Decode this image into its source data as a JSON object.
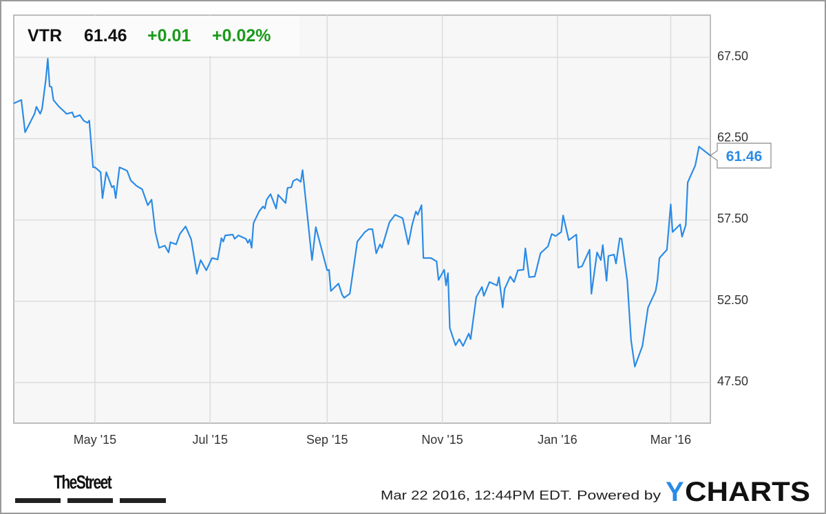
{
  "header": {
    "ticker": "VTR",
    "price": "61.46",
    "change": "+0.01",
    "change_pct": "+0.02%"
  },
  "colors": {
    "line": "#2a8be6",
    "positive": "#1a9a1a",
    "plot_bg": "#f7f7f7",
    "grid": "#dcdcdc",
    "ycharts_y": "#2a8be6"
  },
  "footer": {
    "timestamp": "Mar 22 2016, 12:44PM EDT.",
    "powered_by": "Powered by",
    "brand_y": "Y",
    "brand_rest": "CHARTS",
    "logo_left": "TheStreet"
  },
  "chart_data": {
    "type": "line",
    "title": "",
    "xlabel": "",
    "ylabel": "",
    "y_axis_side": "right",
    "ylim": [
      45.0,
      70.1
    ],
    "xlim": [
      "2015-03-19",
      "2016-03-22"
    ],
    "grid": true,
    "yticks": [
      47.5,
      52.5,
      57.5,
      62.5,
      67.5
    ],
    "ytick_labels": [
      "47.50",
      "52.50",
      "57.50",
      "62.50",
      "67.50"
    ],
    "xticks": [
      "2015-05-01",
      "2015-07-01",
      "2015-09-01",
      "2015-11-01",
      "2016-01-01",
      "2016-03-01"
    ],
    "xtick_labels": [
      "May '15",
      "Jul '15",
      "Sep '15",
      "Nov '15",
      "Jan '16",
      "Mar '16"
    ],
    "last_value_label": "61.46",
    "series": [
      {
        "x": [
          "2015-03-19",
          "2015-03-23",
          "2015-03-25",
          "2015-03-30",
          "2015-03-31",
          "2015-04-02",
          "2015-04-03",
          "2015-04-05",
          "2015-04-06",
          "2015-04-07",
          "2015-04-08",
          "2015-04-09",
          "2015-04-12",
          "2015-04-14",
          "2015-04-16",
          "2015-04-19",
          "2015-04-20",
          "2015-04-23",
          "2015-04-25",
          "2015-04-27",
          "2015-04-28",
          "2015-04-30",
          "2015-05-01",
          "2015-05-04",
          "2015-05-05",
          "2015-05-07",
          "2015-05-10",
          "2015-05-11",
          "2015-05-12",
          "2015-05-14",
          "2015-05-18",
          "2015-05-20",
          "2015-05-23",
          "2015-05-26",
          "2015-05-29",
          "2015-05-31",
          "2015-06-02",
          "2015-06-04",
          "2015-06-07",
          "2015-06-09",
          "2015-06-10",
          "2015-06-13",
          "2015-06-15",
          "2015-06-18",
          "2015-06-21",
          "2015-06-24",
          "2015-06-26",
          "2015-06-29",
          "2015-07-02",
          "2015-07-05",
          "2015-07-07",
          "2015-07-08",
          "2015-07-09",
          "2015-07-13",
          "2015-07-14",
          "2015-07-16",
          "2015-07-20",
          "2015-07-21",
          "2015-07-22",
          "2015-07-23",
          "2015-07-24",
          "2015-07-27",
          "2015-07-29",
          "2015-07-30",
          "2015-07-31",
          "2015-08-02",
          "2015-08-05",
          "2015-08-06",
          "2015-08-10",
          "2015-08-11",
          "2015-08-13",
          "2015-08-14",
          "2015-08-16",
          "2015-08-18",
          "2015-08-19",
          "2015-08-24",
          "2015-08-26",
          "2015-09-01",
          "2015-09-02",
          "2015-09-03",
          "2015-09-07",
          "2015-09-09",
          "2015-09-10",
          "2015-09-13",
          "2015-09-17",
          "2015-09-21",
          "2015-09-23",
          "2015-09-25",
          "2015-09-27",
          "2015-09-29",
          "2015-09-30",
          "2015-10-04",
          "2015-10-07",
          "2015-10-11",
          "2015-10-14",
          "2015-10-16",
          "2015-10-18",
          "2015-10-19",
          "2015-10-21",
          "2015-10-22",
          "2015-10-26",
          "2015-10-29",
          "2015-10-30",
          "2015-11-02",
          "2015-11-03",
          "2015-11-04",
          "2015-11-05",
          "2015-11-08",
          "2015-11-10",
          "2015-11-12",
          "2015-11-15",
          "2015-11-16",
          "2015-11-19",
          "2015-11-22",
          "2015-11-23",
          "2015-11-26",
          "2015-11-30",
          "2015-12-01",
          "2015-12-03",
          "2015-12-04",
          "2015-12-07",
          "2015-12-09",
          "2015-12-11",
          "2015-12-14",
          "2015-12-15",
          "2015-12-17",
          "2015-12-20",
          "2015-12-23",
          "2015-12-27",
          "2015-12-29",
          "2015-12-31",
          "2016-01-03",
          "2016-01-04",
          "2016-01-07",
          "2016-01-11",
          "2016-01-12",
          "2016-01-14",
          "2016-01-18",
          "2016-01-19",
          "2016-01-22",
          "2016-01-24",
          "2016-01-25",
          "2016-01-27",
          "2016-01-28",
          "2016-01-31",
          "2016-02-01",
          "2016-02-03",
          "2016-02-04",
          "2016-02-07",
          "2016-02-09",
          "2016-02-11",
          "2016-02-15",
          "2016-02-18",
          "2016-02-22",
          "2016-02-23",
          "2016-02-24",
          "2016-02-28",
          "2016-03-01",
          "2016-03-02",
          "2016-03-06",
          "2016-03-07",
          "2016-03-09",
          "2016-03-10",
          "2016-03-14",
          "2016-03-16",
          "2016-03-22"
        ],
        "y": [
          64.67,
          64.88,
          62.89,
          64.03,
          64.46,
          64.03,
          64.33,
          66.15,
          67.42,
          65.72,
          65.68,
          64.88,
          64.46,
          64.25,
          64.03,
          64.12,
          63.82,
          63.95,
          63.61,
          63.48,
          63.61,
          60.74,
          60.74,
          60.44,
          58.84,
          60.44,
          59.51,
          59.6,
          58.84,
          60.74,
          60.53,
          59.93,
          59.6,
          59.39,
          58.41,
          58.75,
          56.76,
          55.79,
          55.92,
          55.5,
          56.13,
          56.0,
          56.64,
          57.1,
          56.3,
          54.19,
          55.03,
          54.4,
          55.16,
          55.07,
          56.38,
          56.17,
          56.55,
          56.6,
          56.34,
          56.55,
          56.34,
          56.09,
          56.3,
          55.79,
          57.31,
          58.03,
          58.33,
          58.2,
          58.75,
          59.09,
          58.2,
          59.05,
          58.54,
          59.47,
          59.51,
          59.89,
          60.02,
          59.85,
          60.57,
          55.03,
          57.06,
          54.4,
          54.44,
          53.13,
          53.59,
          52.88,
          52.71,
          52.96,
          56.17,
          56.76,
          56.93,
          56.93,
          55.45,
          56.0,
          55.79,
          57.36,
          57.82,
          57.61,
          56.0,
          57.19,
          58.03,
          57.82,
          58.41,
          55.16,
          55.16,
          54.95,
          53.81,
          54.44,
          53.47,
          54.23,
          50.85,
          49.79,
          50.17,
          49.75,
          50.51,
          50.17,
          52.75,
          53.38,
          52.83,
          53.68,
          53.47,
          53.98,
          52.12,
          53.26,
          54.02,
          53.68,
          54.4,
          54.44,
          55.75,
          53.98,
          54.02,
          55.45,
          55.88,
          56.64,
          56.51,
          56.76,
          57.78,
          56.26,
          56.6,
          54.57,
          54.65,
          55.67,
          52.96,
          55.5,
          55.03,
          55.96,
          53.76,
          55.29,
          55.37,
          54.82,
          56.38,
          56.34,
          53.76,
          50.09,
          48.48,
          49.75,
          52.12,
          53.13,
          53.81,
          55.16,
          55.67,
          58.46,
          56.76,
          57.23,
          56.47,
          57.19,
          59.81,
          60.86,
          62.01,
          61.46
        ]
      }
    ]
  }
}
